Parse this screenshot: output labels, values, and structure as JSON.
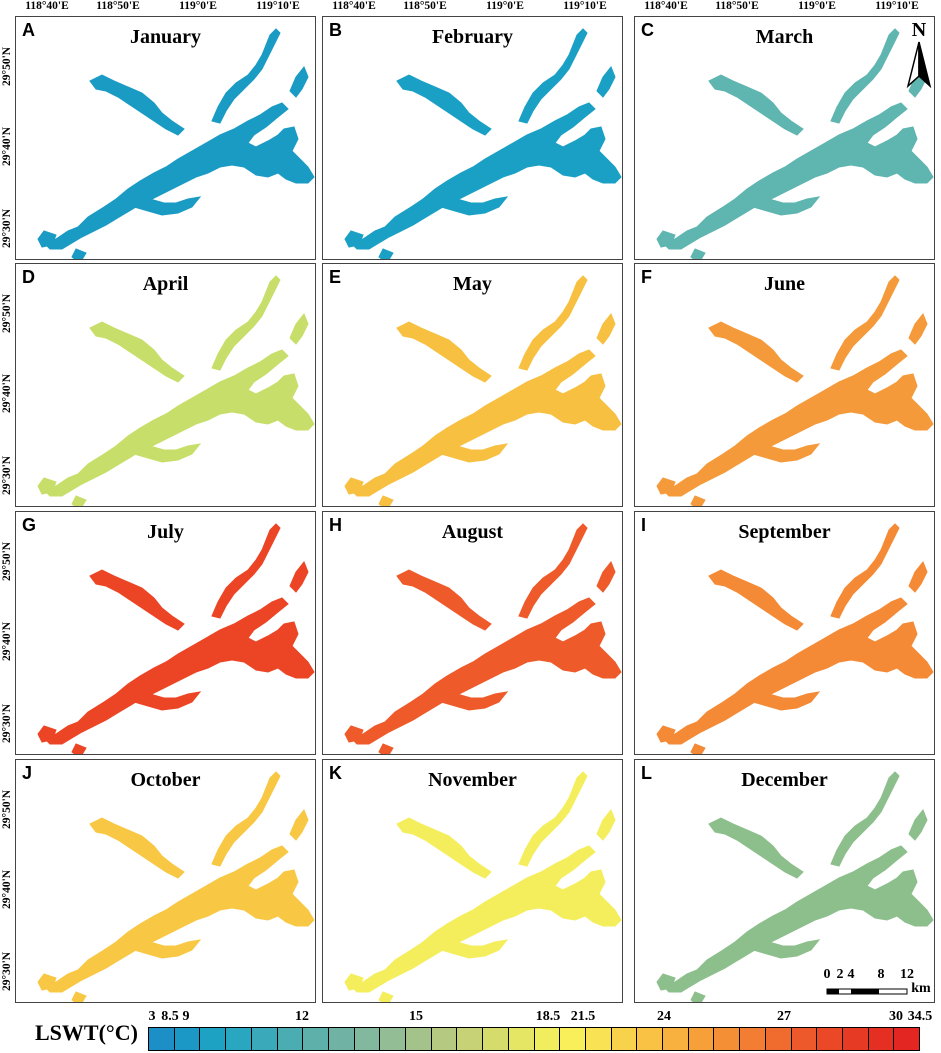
{
  "figure": {
    "longitude_labels": [
      "118°40'E",
      "118°50'E",
      "119°0'E",
      "119°10'E"
    ],
    "latitude_labels": [
      "29°50'N",
      "29°40'N",
      "29°30'N"
    ],
    "panels": [
      {
        "letter": "A",
        "month": "January",
        "color": "#1a9bc4"
      },
      {
        "letter": "B",
        "month": "February",
        "color": "#1aa0c4"
      },
      {
        "letter": "C",
        "month": "March",
        "color": "#5fb5b0"
      },
      {
        "letter": "D",
        "month": "April",
        "color": "#c7df6a"
      },
      {
        "letter": "E",
        "month": "May",
        "color": "#f7c040"
      },
      {
        "letter": "F",
        "month": "June",
        "color": "#f49a3a"
      },
      {
        "letter": "G",
        "month": "July",
        "color": "#ec4525"
      },
      {
        "letter": "H",
        "month": "August",
        "color": "#ee5a2a"
      },
      {
        "letter": "I",
        "month": "September",
        "color": "#f58a36"
      },
      {
        "letter": "J",
        "month": "October",
        "color": "#f8c845"
      },
      {
        "letter": "K",
        "month": "November",
        "color": "#f4ee5c"
      },
      {
        "letter": "L",
        "month": "December",
        "color": "#8dbf8d"
      }
    ]
  },
  "legend": {
    "title": "LSWT(°C)",
    "tick_labels": [
      "3",
      "8.5",
      "9",
      "12",
      "15",
      "18.5",
      "21.5",
      "24",
      "27",
      "30",
      "34.5"
    ],
    "colors": [
      "#1c8fc6",
      "#1b98c6",
      "#1ea2c4",
      "#2aa7c0",
      "#3aa9b9",
      "#4bacb2",
      "#5eb0ab",
      "#70b3a4",
      "#82b89d",
      "#93bd94",
      "#a4c38b",
      "#b5ca80",
      "#c6d275",
      "#d6dc6c",
      "#e4e664",
      "#f0ee5e",
      "#f8ef5a",
      "#f9e253",
      "#f9d24c",
      "#f9c245",
      "#f8b13f",
      "#f7a03a",
      "#f58f36",
      "#f37d32",
      "#f06b2e",
      "#ed592a",
      "#ea4826",
      "#e73a24",
      "#e52f23",
      "#e32622"
    ]
  },
  "scale_bar": {
    "labels": [
      "0",
      "2",
      "4",
      "8",
      "12"
    ],
    "unit": "km"
  },
  "north_arrow": {
    "label": "N"
  }
}
